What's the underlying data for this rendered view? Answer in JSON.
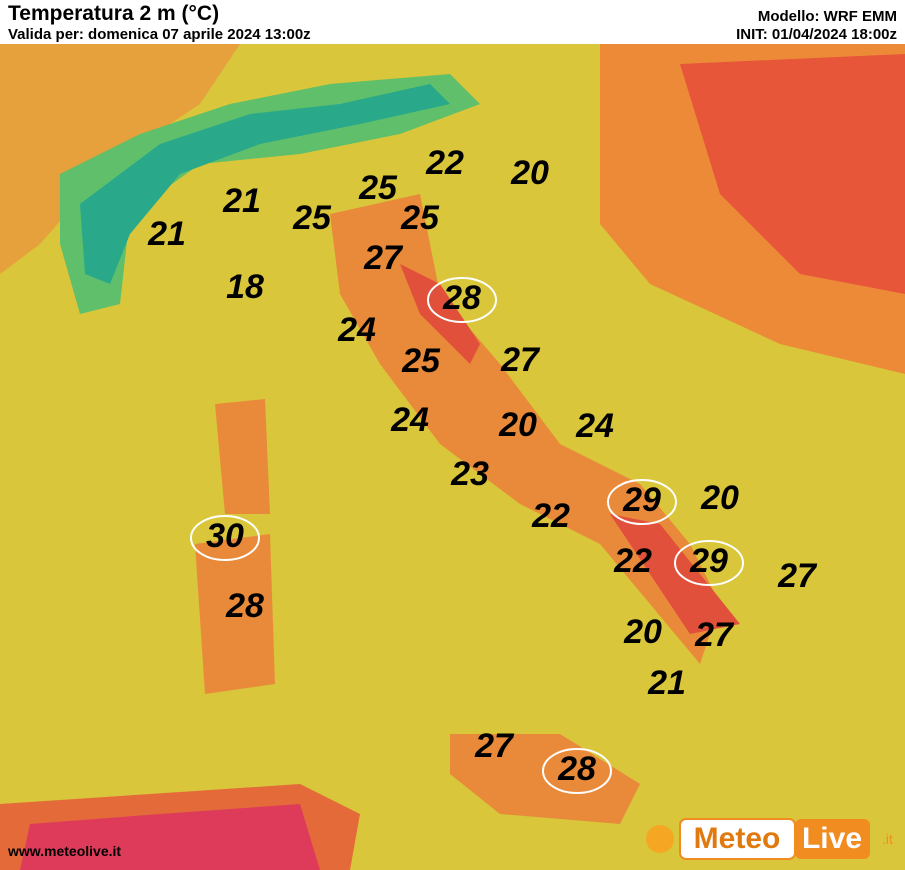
{
  "header": {
    "title": "Temperatura 2 m (°C)",
    "valid": "Valida per: domenica 07 aprile 2024 13:00z",
    "model": "Modello: WRF EMM",
    "init": "INIT: 01/04/2024 18:00z"
  },
  "labels": [
    {
      "value": 21
    },
    {
      "value": 21
    },
    {
      "value": 25
    },
    {
      "value": 18
    },
    {
      "value": 25
    },
    {
      "value": 22
    },
    {
      "value": 20
    },
    {
      "value": 25
    },
    {
      "value": 27
    },
    {
      "value": 28,
      "circled": true
    },
    {
      "value": 24
    },
    {
      "value": 25
    },
    {
      "value": 27
    },
    {
      "value": 24
    },
    {
      "value": 20
    },
    {
      "value": 24
    },
    {
      "value": 23
    },
    {
      "value": 29,
      "circled": true
    },
    {
      "value": 20
    },
    {
      "value": 22
    },
    {
      "value": 30,
      "circled": true
    },
    {
      "value": 22
    },
    {
      "value": 29,
      "circled": true
    },
    {
      "value": 27
    },
    {
      "value": 28
    },
    {
      "value": 20
    },
    {
      "value": 27
    },
    {
      "value": 21
    },
    {
      "value": 27
    },
    {
      "value": 28,
      "circled": true
    }
  ],
  "footer": {
    "site": "www.meteolive.it",
    "logo_a": "Meteo",
    "logo_b": "Live",
    "logo_c": ".it"
  }
}
